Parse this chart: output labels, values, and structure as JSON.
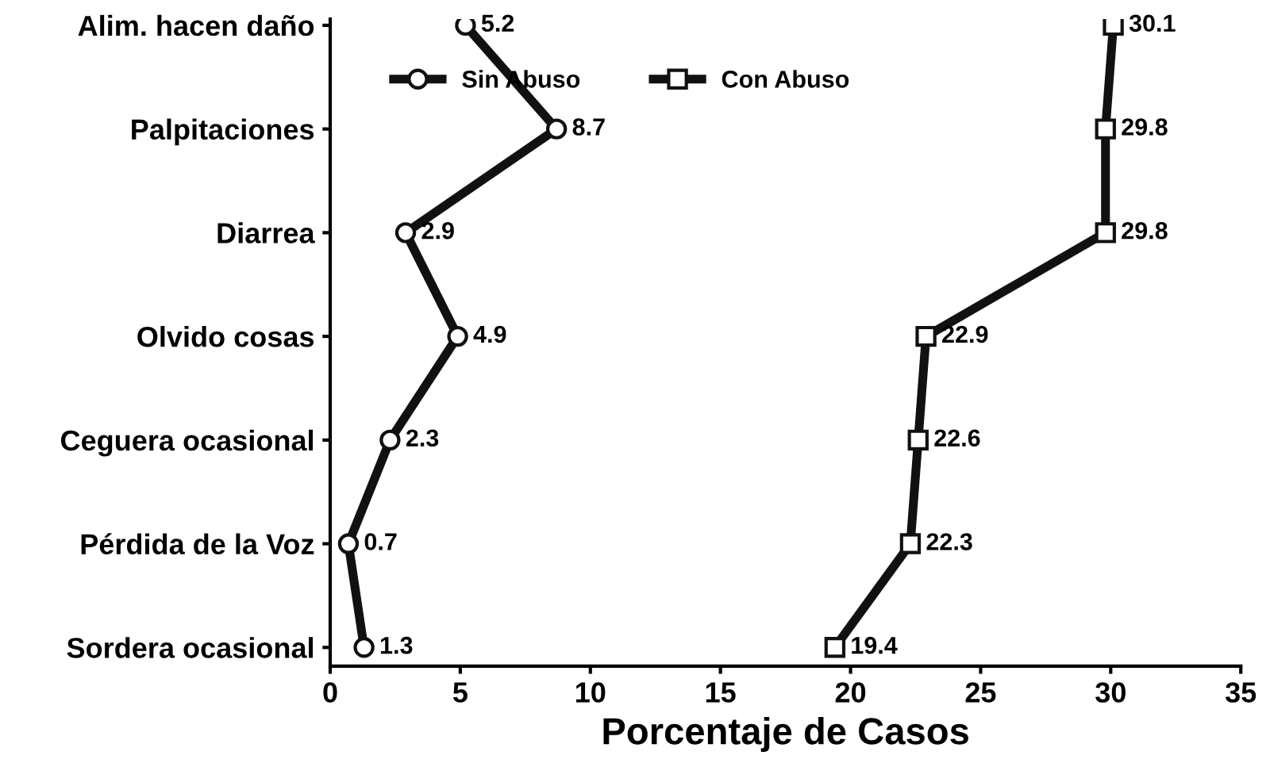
{
  "chart_data": {
    "type": "line",
    "orientation": "horizontal",
    "xlabel": "Porcentaje de Casos",
    "categories": [
      "Alim. hacen daño",
      "Palpitaciones",
      "Diarrea",
      "Olvido cosas",
      "Ceguera ocasional",
      "Pérdida de la Voz",
      "Sordera ocasional"
    ],
    "series": [
      {
        "name": "Sin Abuso",
        "color": "#111111",
        "marker": "circle",
        "values": [
          5.2,
          8.7,
          2.9,
          4.9,
          2.3,
          0.7,
          1.3
        ]
      },
      {
        "name": "Con Abuso",
        "color": "#111111",
        "marker": "square",
        "values": [
          30.1,
          29.8,
          29.8,
          22.9,
          22.6,
          22.3,
          19.4
        ]
      }
    ],
    "xlim": [
      0,
      35
    ],
    "xticks": [
      0,
      5,
      10,
      15,
      20,
      25,
      30,
      35
    ],
    "data_labels": true,
    "legend": "top",
    "grid": false,
    "line_style": "solid"
  }
}
